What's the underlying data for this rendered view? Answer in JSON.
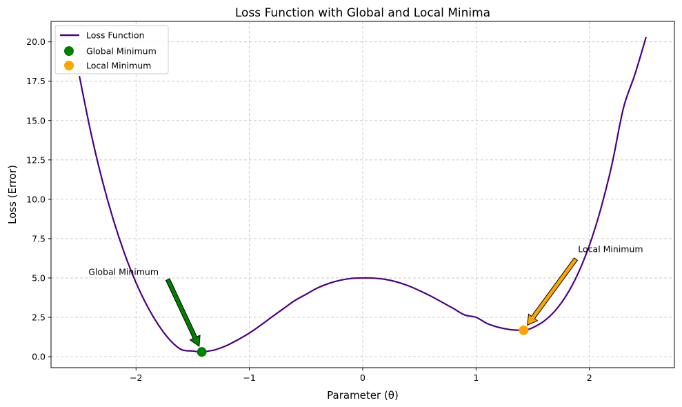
{
  "chart_data": {
    "type": "line",
    "title": "Loss Function with Global and Local Minima",
    "xlabel": "Parameter (θ)",
    "ylabel": "Loss (Error)",
    "xlim": [
      -2.75,
      2.75
    ],
    "ylim": [
      -0.7,
      21.3
    ],
    "grid": true,
    "legend_position": "top-left",
    "x_ticks": [
      -2,
      -1,
      0,
      1,
      2
    ],
    "x_tick_labels": [
      "−2",
      "−1",
      "0",
      "1",
      "2"
    ],
    "y_ticks": [
      0,
      2.5,
      5,
      7.5,
      10,
      12.5,
      15,
      17.5,
      20
    ],
    "y_tick_labels": [
      "0.0",
      "2.5",
      "5.0",
      "7.5",
      "10.0",
      "12.5",
      "15.0",
      "17.5",
      "20.0"
    ],
    "series": [
      {
        "name": "Loss Function",
        "color": "#4b0082",
        "x": [
          -2.5,
          -2.4,
          -2.3,
          -2.2,
          -2.1,
          -2.0,
          -1.9,
          -1.8,
          -1.7,
          -1.6,
          -1.5,
          -1.45,
          -1.42,
          -1.4,
          -1.35,
          -1.3,
          -1.2,
          -1.1,
          -1.0,
          -0.9,
          -0.8,
          -0.7,
          -0.6,
          -0.5,
          -0.4,
          -0.3,
          -0.2,
          -0.1,
          0.0,
          0.05,
          0.1,
          0.2,
          0.3,
          0.4,
          0.5,
          0.6,
          0.7,
          0.8,
          0.9,
          1.0,
          1.1,
          1.2,
          1.3,
          1.35,
          1.4,
          1.42,
          1.45,
          1.5,
          1.6,
          1.7,
          1.8,
          1.9,
          2.0,
          2.1,
          2.2,
          2.3,
          2.4,
          2.5
        ],
        "values": [
          17.83,
          14.29,
          11.26,
          8.69,
          6.52,
          4.7,
          3.2,
          1.99,
          1.05,
          0.45,
          0.36,
          0.31,
          0.31,
          0.32,
          0.37,
          0.44,
          0.71,
          1.08,
          1.5,
          2.0,
          2.53,
          3.05,
          3.56,
          3.96,
          4.36,
          4.65,
          4.85,
          4.97,
          5.0,
          5.0,
          4.99,
          4.91,
          4.75,
          4.51,
          4.2,
          3.85,
          3.46,
          3.06,
          2.65,
          2.5,
          2.1,
          1.86,
          1.72,
          1.69,
          1.68,
          1.68,
          1.71,
          1.84,
          2.26,
          2.94,
          3.93,
          5.29,
          7.08,
          9.38,
          12.25,
          15.79,
          17.9,
          20.3
        ]
      },
      {
        "name": "Global Minimum",
        "color": "#008000",
        "type": "scatter",
        "x": [
          -1.42
        ],
        "values": [
          0.3
        ]
      },
      {
        "name": "Local Minimum",
        "color": "#ffa500",
        "type": "scatter",
        "x": [
          1.42
        ],
        "values": [
          1.68
        ]
      }
    ],
    "annotations": [
      {
        "text": "Global Minimum",
        "text_x": -2.42,
        "text_y": 5.2,
        "arrow_from_x": -1.72,
        "arrow_from_y": 4.9,
        "arrow_to_x": -1.42,
        "arrow_to_y": 0.3,
        "color": "#008000"
      },
      {
        "text": "Local Minimum",
        "text_x": 1.9,
        "text_y": 6.65,
        "arrow_from_x": 1.88,
        "arrow_from_y": 6.2,
        "arrow_to_x": 1.42,
        "arrow_to_y": 1.68,
        "color": "#ffa500"
      }
    ]
  }
}
